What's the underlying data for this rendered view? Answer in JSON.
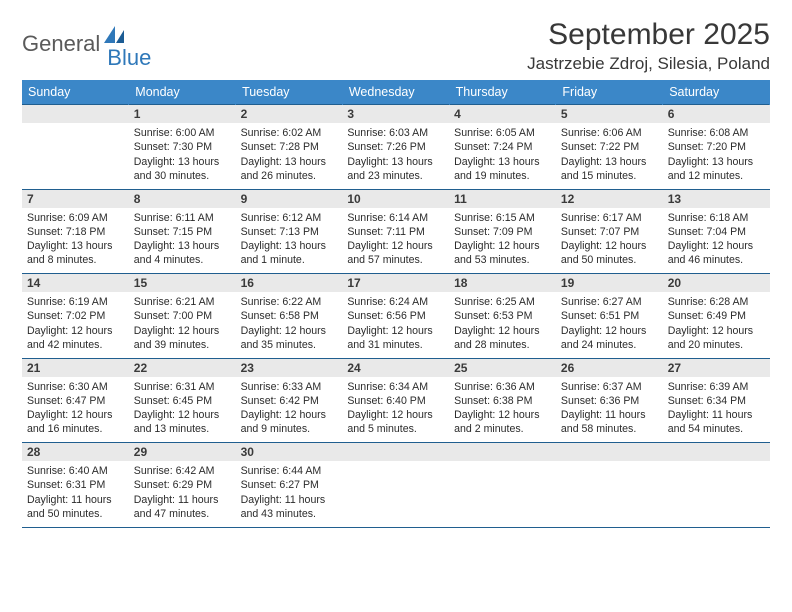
{
  "logo": {
    "part1": "General",
    "part2": "Blue"
  },
  "title": "September 2025",
  "location": "Jastrzebie Zdroj, Silesia, Poland",
  "colors": {
    "header_bg": "#3b87c8",
    "header_text": "#ffffff",
    "rule": "#205e8f",
    "daynum_bg": "#e9e9e9",
    "body_text": "#2b2b2b",
    "logo_gray": "#5a5a5a",
    "logo_blue": "#2f78b9"
  },
  "day_headers": [
    "Sunday",
    "Monday",
    "Tuesday",
    "Wednesday",
    "Thursday",
    "Friday",
    "Saturday"
  ],
  "weeks": [
    {
      "nums": [
        "",
        "1",
        "2",
        "3",
        "4",
        "5",
        "6"
      ],
      "cells": [
        "",
        "Sunrise: 6:00 AM\nSunset: 7:30 PM\nDaylight: 13 hours and 30 minutes.",
        "Sunrise: 6:02 AM\nSunset: 7:28 PM\nDaylight: 13 hours and 26 minutes.",
        "Sunrise: 6:03 AM\nSunset: 7:26 PM\nDaylight: 13 hours and 23 minutes.",
        "Sunrise: 6:05 AM\nSunset: 7:24 PM\nDaylight: 13 hours and 19 minutes.",
        "Sunrise: 6:06 AM\nSunset: 7:22 PM\nDaylight: 13 hours and 15 minutes.",
        "Sunrise: 6:08 AM\nSunset: 7:20 PM\nDaylight: 13 hours and 12 minutes."
      ]
    },
    {
      "nums": [
        "7",
        "8",
        "9",
        "10",
        "11",
        "12",
        "13"
      ],
      "cells": [
        "Sunrise: 6:09 AM\nSunset: 7:18 PM\nDaylight: 13 hours and 8 minutes.",
        "Sunrise: 6:11 AM\nSunset: 7:15 PM\nDaylight: 13 hours and 4 minutes.",
        "Sunrise: 6:12 AM\nSunset: 7:13 PM\nDaylight: 13 hours and 1 minute.",
        "Sunrise: 6:14 AM\nSunset: 7:11 PM\nDaylight: 12 hours and 57 minutes.",
        "Sunrise: 6:15 AM\nSunset: 7:09 PM\nDaylight: 12 hours and 53 minutes.",
        "Sunrise: 6:17 AM\nSunset: 7:07 PM\nDaylight: 12 hours and 50 minutes.",
        "Sunrise: 6:18 AM\nSunset: 7:04 PM\nDaylight: 12 hours and 46 minutes."
      ]
    },
    {
      "nums": [
        "14",
        "15",
        "16",
        "17",
        "18",
        "19",
        "20"
      ],
      "cells": [
        "Sunrise: 6:19 AM\nSunset: 7:02 PM\nDaylight: 12 hours and 42 minutes.",
        "Sunrise: 6:21 AM\nSunset: 7:00 PM\nDaylight: 12 hours and 39 minutes.",
        "Sunrise: 6:22 AM\nSunset: 6:58 PM\nDaylight: 12 hours and 35 minutes.",
        "Sunrise: 6:24 AM\nSunset: 6:56 PM\nDaylight: 12 hours and 31 minutes.",
        "Sunrise: 6:25 AM\nSunset: 6:53 PM\nDaylight: 12 hours and 28 minutes.",
        "Sunrise: 6:27 AM\nSunset: 6:51 PM\nDaylight: 12 hours and 24 minutes.",
        "Sunrise: 6:28 AM\nSunset: 6:49 PM\nDaylight: 12 hours and 20 minutes."
      ]
    },
    {
      "nums": [
        "21",
        "22",
        "23",
        "24",
        "25",
        "26",
        "27"
      ],
      "cells": [
        "Sunrise: 6:30 AM\nSunset: 6:47 PM\nDaylight: 12 hours and 16 minutes.",
        "Sunrise: 6:31 AM\nSunset: 6:45 PM\nDaylight: 12 hours and 13 minutes.",
        "Sunrise: 6:33 AM\nSunset: 6:42 PM\nDaylight: 12 hours and 9 minutes.",
        "Sunrise: 6:34 AM\nSunset: 6:40 PM\nDaylight: 12 hours and 5 minutes.",
        "Sunrise: 6:36 AM\nSunset: 6:38 PM\nDaylight: 12 hours and 2 minutes.",
        "Sunrise: 6:37 AM\nSunset: 6:36 PM\nDaylight: 11 hours and 58 minutes.",
        "Sunrise: 6:39 AM\nSunset: 6:34 PM\nDaylight: 11 hours and 54 minutes."
      ]
    },
    {
      "nums": [
        "28",
        "29",
        "30",
        "",
        "",
        "",
        ""
      ],
      "cells": [
        "Sunrise: 6:40 AM\nSunset: 6:31 PM\nDaylight: 11 hours and 50 minutes.",
        "Sunrise: 6:42 AM\nSunset: 6:29 PM\nDaylight: 11 hours and 47 minutes.",
        "Sunrise: 6:44 AM\nSunset: 6:27 PM\nDaylight: 11 hours and 43 minutes.",
        "",
        "",
        "",
        ""
      ]
    }
  ]
}
